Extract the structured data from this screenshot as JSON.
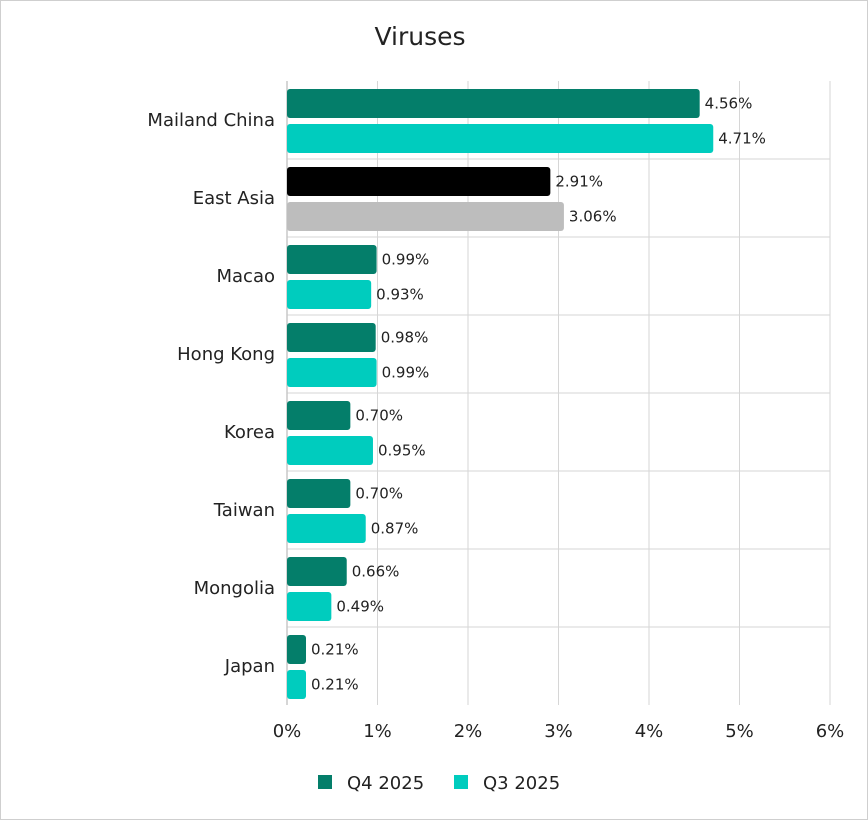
{
  "chart_data": {
    "type": "bar",
    "orientation": "horizontal",
    "title": "Viruses",
    "xlabel": "",
    "ylabel": "",
    "xlim": [
      0,
      6
    ],
    "x_ticks": [
      "0%",
      "1%",
      "2%",
      "3%",
      "4%",
      "5%",
      "6%"
    ],
    "grid": true,
    "legend_position": "bottom",
    "categories": [
      "Mailand China",
      "East Asia",
      "Macao",
      "Hong Kong",
      "Korea",
      "Taiwan",
      "Mongolia",
      "Japan"
    ],
    "series": [
      {
        "name": "Q4 2025",
        "color": "#047e6a",
        "values": [
          4.56,
          2.91,
          0.99,
          0.98,
          0.7,
          0.7,
          0.66,
          0.21
        ],
        "labels": [
          "4.56%",
          "2.91%",
          "0.99%",
          "0.98%",
          "0.70%",
          "0.70%",
          "0.66%",
          "0.21%"
        ]
      },
      {
        "name": "Q3 2025",
        "color": "#00ccbe",
        "values": [
          4.71,
          3.06,
          0.93,
          0.99,
          0.95,
          0.87,
          0.49,
          0.21
        ],
        "labels": [
          "4.71%",
          "3.06%",
          "0.93%",
          "0.99%",
          "0.95%",
          "0.87%",
          "0.49%",
          "0.21%"
        ]
      }
    ],
    "highlight": {
      "category": "East Asia",
      "colors": [
        "#000000",
        "#bdbdbd"
      ]
    }
  }
}
